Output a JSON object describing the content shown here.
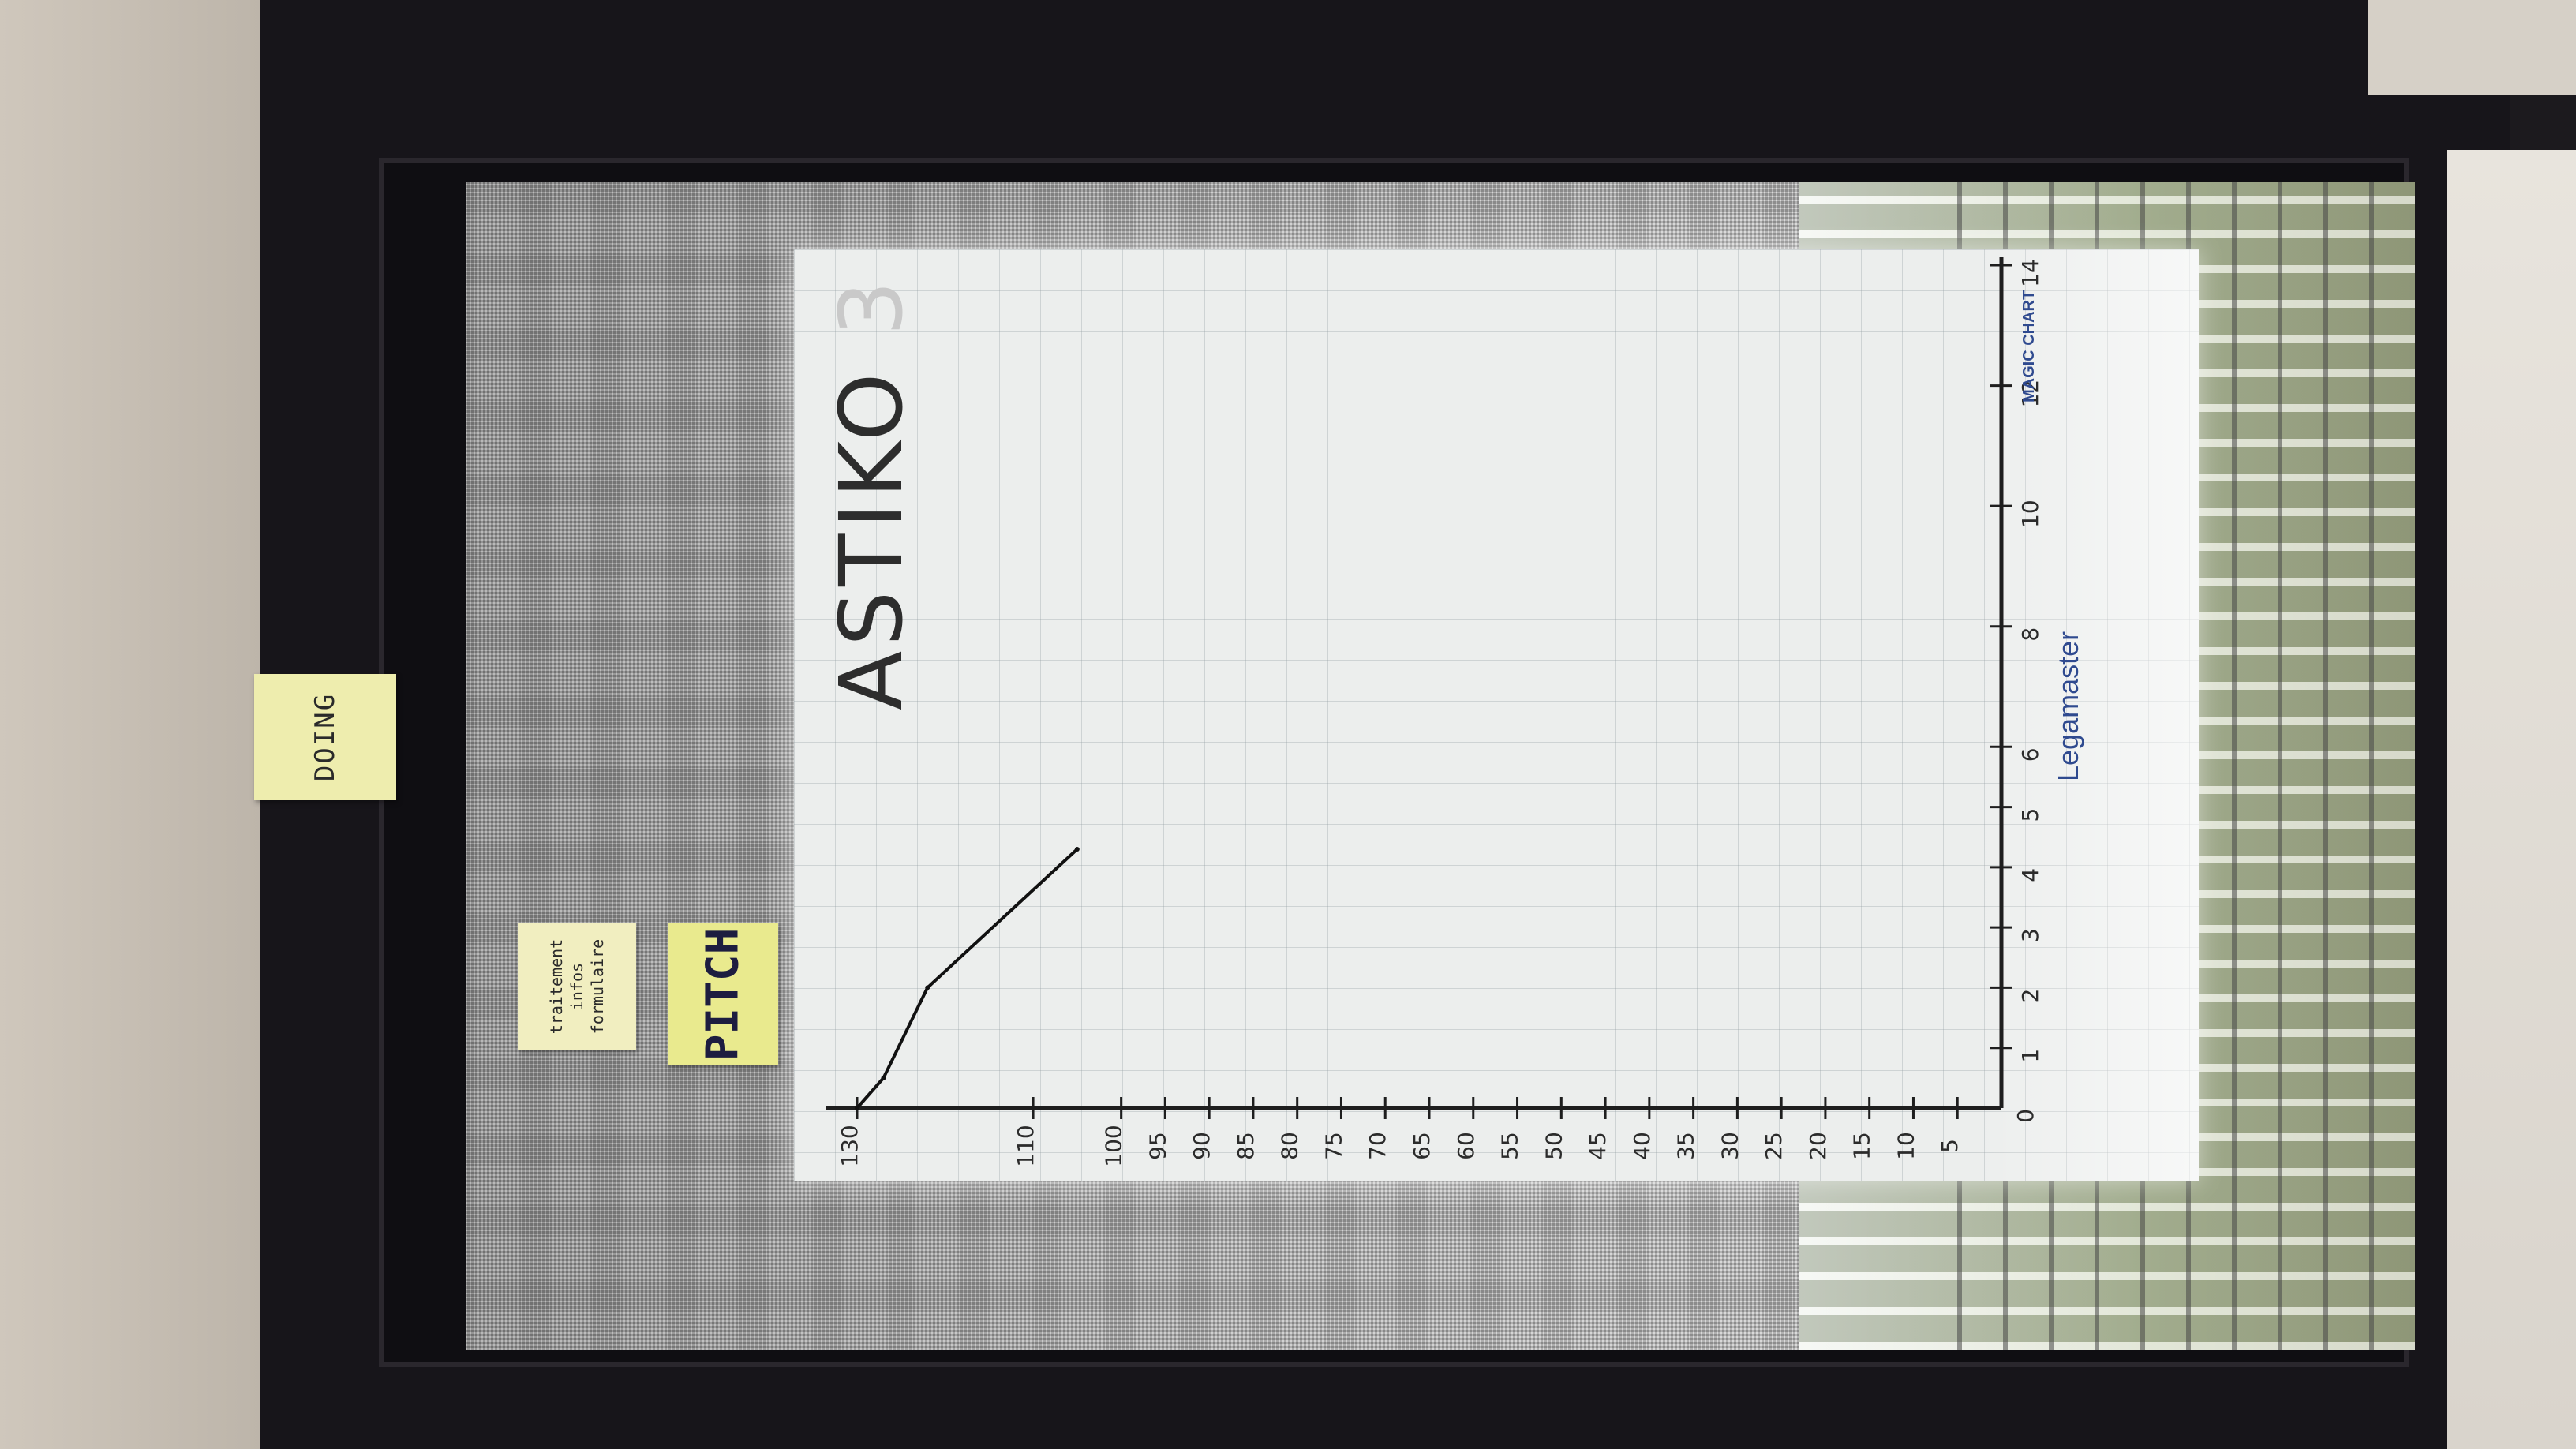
{
  "sticky_notes": {
    "doing": "DOING",
    "pitch": "PITCH",
    "traitement": "traitement infos formulaire"
  },
  "flipchart": {
    "title_main": "ASTIKO",
    "title_faded": "3",
    "brand": "Legamaster",
    "brand_product": "MAGIC CHART"
  },
  "chart_data": {
    "type": "line",
    "title": "ASTIKO 3",
    "xlabel": "",
    "ylabel": "",
    "x_ticks": [
      "0",
      "1",
      "2",
      "3",
      "4",
      "5",
      "6",
      "8",
      "10",
      "12",
      "14"
    ],
    "y_ticks": [
      "5",
      "10",
      "15",
      "20",
      "25",
      "30",
      "35",
      "40",
      "45",
      "50",
      "55",
      "60",
      "65",
      "70",
      "75",
      "80",
      "85",
      "90",
      "95",
      "100",
      "110",
      "130"
    ],
    "xlim": [
      0,
      14
    ],
    "ylim": [
      0,
      130
    ],
    "grid": true,
    "series": [
      {
        "x": [
          0,
          0.5,
          2,
          4.3
        ],
        "y": [
          130,
          127,
          122,
          105
        ]
      }
    ]
  }
}
